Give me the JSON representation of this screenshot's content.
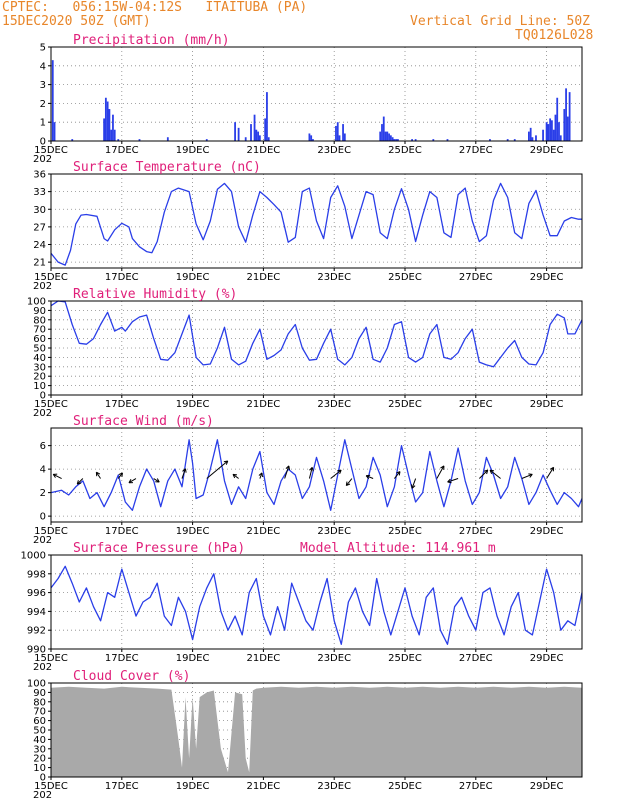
{
  "header": {
    "line1": "CPTEC:   056:15W-04:12S   ITAITUBA (PA)",
    "line2": "15DEC2020 50Z (GMT)",
    "right1": "Vertical Grid Line: 50Z",
    "right2": "TQ0126L028"
  },
  "colors": {
    "line": "#2a3ee8",
    "bar": "#2a3ee8",
    "cloud": "#a9a9a9",
    "title": "#e0207a",
    "header": "#e8862a",
    "wind_arrow": "#000000"
  },
  "x_axis": {
    "tick_labels": [
      "15DEC",
      "17DEC",
      "19DEC",
      "21DEC",
      "23DEC",
      "25DEC",
      "27DEC",
      "29DEC"
    ],
    "tick_days": [
      0,
      2,
      4,
      6,
      8,
      10,
      12,
      14
    ],
    "range_days": [
      0,
      15
    ],
    "year_fragment": "202"
  },
  "chart_data": [
    {
      "type": "bar",
      "title": "Precipitation (mm/h)",
      "ylim": [
        0,
        5
      ],
      "yticks": [
        0,
        1,
        2,
        3,
        4,
        5
      ],
      "x": [
        0.05,
        0.1,
        0.6,
        1.5,
        1.55,
        1.6,
        1.65,
        1.7,
        1.75,
        1.8,
        1.9,
        2.5,
        3.3,
        4.4,
        5.2,
        5.3,
        5.5,
        5.65,
        5.75,
        5.8,
        5.85,
        5.9,
        6.05,
        6.1,
        6.15,
        7.3,
        7.35,
        7.4,
        8.05,
        8.1,
        8.15,
        8.25,
        8.3,
        9.3,
        9.35,
        9.4,
        9.45,
        9.5,
        9.55,
        9.6,
        9.65,
        9.7,
        9.75,
        9.8,
        10.2,
        10.3,
        10.8,
        11.2,
        12.4,
        12.9,
        13.1,
        13.5,
        13.55,
        13.6,
        13.7,
        13.9,
        14.0,
        14.05,
        14.1,
        14.15,
        14.2,
        14.25,
        14.3,
        14.35,
        14.4,
        14.5,
        14.55,
        14.6,
        14.65
      ],
      "values": [
        4.3,
        1.0,
        0.1,
        1.2,
        2.3,
        2.1,
        1.7,
        0.6,
        1.4,
        0.6,
        0.1,
        0.1,
        0.2,
        0.1,
        1.0,
        0.7,
        0.2,
        0.9,
        1.4,
        0.6,
        0.5,
        0.3,
        1.2,
        2.6,
        0.2,
        0.4,
        0.3,
        0.1,
        0.8,
        1.0,
        0.3,
        0.9,
        0.4,
        0.5,
        0.9,
        1.3,
        0.5,
        0.5,
        0.4,
        0.3,
        0.2,
        0.1,
        0.1,
        0.1,
        0.1,
        0.1,
        0.1,
        0.1,
        0.1,
        0.1,
        0.1,
        0.5,
        0.7,
        0.2,
        0.3,
        0.6,
        1.0,
        0.9,
        1.2,
        1.1,
        0.6,
        1.4,
        2.3,
        1.0,
        0.3,
        1.7,
        2.8,
        1.3,
        2.6
      ]
    },
    {
      "type": "line",
      "title": "Surface Temperature (nC)",
      "ylim": [
        20,
        36
      ],
      "yticks": [
        21,
        24,
        27,
        30,
        33,
        36
      ],
      "x": [
        0,
        0.2,
        0.4,
        0.55,
        0.7,
        0.85,
        1.0,
        1.3,
        1.5,
        1.6,
        1.8,
        2.0,
        2.2,
        2.3,
        2.5,
        2.7,
        2.85,
        3.0,
        3.2,
        3.4,
        3.6,
        3.9,
        4.1,
        4.3,
        4.5,
        4.7,
        4.9,
        5.1,
        5.3,
        5.5,
        5.7,
        5.9,
        6.1,
        6.3,
        6.5,
        6.7,
        6.9,
        7.1,
        7.3,
        7.5,
        7.7,
        7.9,
        8.1,
        8.3,
        8.5,
        8.7,
        8.9,
        9.1,
        9.3,
        9.5,
        9.7,
        9.9,
        10.1,
        10.3,
        10.5,
        10.7,
        10.9,
        11.1,
        11.3,
        11.5,
        11.7,
        11.9,
        12.1,
        12.3,
        12.5,
        12.7,
        12.9,
        13.1,
        13.3,
        13.5,
        13.7,
        13.9,
        14.1,
        14.3,
        14.5,
        14.7,
        14.9,
        15.0
      ],
      "values": [
        22.5,
        21.0,
        20.5,
        23.0,
        27.5,
        29.0,
        29.1,
        28.8,
        25.0,
        24.6,
        26.5,
        27.6,
        27.0,
        25.0,
        23.6,
        22.8,
        22.6,
        24.5,
        29.5,
        33.0,
        33.6,
        33.0,
        27.5,
        24.8,
        28.0,
        33.4,
        34.4,
        33.0,
        27.0,
        24.4,
        29.0,
        33.0,
        32.0,
        30.8,
        29.5,
        24.4,
        25.2,
        33.0,
        33.6,
        28.0,
        25.0,
        32.0,
        34.0,
        30.5,
        25.0,
        29.0,
        33.0,
        32.5,
        26.0,
        25.0,
        30.0,
        33.5,
        30.0,
        24.5,
        29.0,
        33.0,
        32.0,
        26.0,
        25.2,
        32.5,
        33.6,
        28.0,
        24.5,
        25.5,
        31.5,
        34.4,
        32.0,
        26.0,
        25.0,
        31.0,
        33.2,
        29.0,
        25.5,
        25.5,
        28.0,
        28.6,
        28.3,
        28.3
      ]
    },
    {
      "type": "line",
      "title": "Relative Humidity (%)",
      "ylim": [
        0,
        100
      ],
      "yticks": [
        0,
        10,
        20,
        30,
        40,
        50,
        60,
        70,
        80,
        90,
        100
      ],
      "x": [
        0,
        0.2,
        0.4,
        0.6,
        0.8,
        1.0,
        1.2,
        1.4,
        1.6,
        1.8,
        2.0,
        2.1,
        2.3,
        2.5,
        2.7,
        2.9,
        3.1,
        3.3,
        3.5,
        3.7,
        3.9,
        4.1,
        4.3,
        4.5,
        4.7,
        4.9,
        5.1,
        5.3,
        5.5,
        5.7,
        5.9,
        6.1,
        6.3,
        6.5,
        6.7,
        6.9,
        7.1,
        7.3,
        7.5,
        7.7,
        7.9,
        8.1,
        8.3,
        8.5,
        8.7,
        8.9,
        9.1,
        9.3,
        9.5,
        9.7,
        9.9,
        10.1,
        10.3,
        10.5,
        10.7,
        10.9,
        11.1,
        11.3,
        11.5,
        11.7,
        11.9,
        12.1,
        12.3,
        12.5,
        12.7,
        12.9,
        13.1,
        13.3,
        13.5,
        13.7,
        13.9,
        14.1,
        14.3,
        14.5,
        14.6,
        14.8,
        15.0
      ],
      "values": [
        95,
        100,
        99,
        75,
        55,
        54,
        60,
        75,
        88,
        68,
        72,
        68,
        78,
        83,
        85,
        60,
        38,
        37,
        45,
        65,
        85,
        40,
        32,
        33,
        50,
        72,
        38,
        32,
        36,
        55,
        70,
        38,
        42,
        48,
        65,
        75,
        50,
        37,
        38,
        55,
        70,
        38,
        32,
        40,
        60,
        72,
        38,
        35,
        50,
        75,
        78,
        40,
        35,
        40,
        65,
        75,
        40,
        38,
        45,
        60,
        70,
        35,
        32,
        30,
        40,
        50,
        58,
        40,
        33,
        32,
        45,
        75,
        86,
        82,
        65,
        65,
        80
      ]
    },
    {
      "type": "line",
      "title": "Surface Wind (m/s)",
      "ylim": [
        -0.5,
        7.5
      ],
      "yticks": [
        0,
        2,
        4,
        6
      ],
      "x": [
        0,
        0.3,
        0.5,
        0.7,
        0.9,
        1.1,
        1.3,
        1.5,
        1.7,
        1.9,
        2.1,
        2.3,
        2.5,
        2.7,
        2.9,
        3.1,
        3.3,
        3.5,
        3.7,
        3.9,
        4.0,
        4.1,
        4.3,
        4.5,
        4.7,
        4.9,
        5.1,
        5.3,
        5.5,
        5.7,
        5.9,
        6.1,
        6.3,
        6.5,
        6.7,
        6.9,
        7.1,
        7.3,
        7.5,
        7.7,
        7.9,
        8.1,
        8.3,
        8.5,
        8.7,
        8.9,
        9.1,
        9.3,
        9.5,
        9.7,
        9.9,
        10.1,
        10.3,
        10.5,
        10.7,
        10.9,
        11.1,
        11.3,
        11.5,
        11.7,
        11.9,
        12.1,
        12.3,
        12.5,
        12.7,
        12.9,
        13.1,
        13.3,
        13.5,
        13.7,
        13.9,
        14.1,
        14.3,
        14.5,
        14.7,
        14.9,
        15.0
      ],
      "values": [
        2.0,
        2.2,
        1.8,
        2.5,
        3.0,
        1.5,
        2.0,
        0.8,
        2.0,
        3.5,
        1.2,
        0.5,
        2.5,
        4.0,
        3.0,
        0.8,
        3.0,
        4.0,
        2.5,
        6.5,
        4.5,
        1.5,
        1.8,
        4.0,
        6.5,
        3.0,
        1.0,
        2.5,
        1.5,
        4.0,
        5.5,
        2.0,
        1.0,
        3.0,
        4.0,
        3.5,
        1.5,
        2.5,
        5.0,
        3.0,
        0.5,
        3.5,
        6.5,
        4.0,
        1.5,
        2.5,
        5.0,
        3.5,
        0.8,
        2.5,
        6.0,
        3.5,
        1.2,
        2.0,
        5.5,
        3.0,
        0.8,
        3.0,
        5.8,
        3.0,
        1.0,
        2.0,
        5.0,
        3.5,
        1.5,
        2.5,
        5.0,
        3.2,
        1.0,
        2.0,
        3.5,
        2.2,
        1.0,
        2.0,
        1.5,
        0.8,
        1.5
      ]
    },
    {
      "type": "line",
      "title": "Surface Pressure (hPa)",
      "annotation": "Model Altitude: 114.961 m",
      "ylim": [
        990,
        1000
      ],
      "yticks": [
        990,
        992,
        994,
        996,
        998,
        1000
      ],
      "x": [
        0,
        0.2,
        0.4,
        0.6,
        0.8,
        1.0,
        1.2,
        1.4,
        1.6,
        1.8,
        2.0,
        2.2,
        2.4,
        2.6,
        2.8,
        3.0,
        3.2,
        3.4,
        3.6,
        3.8,
        4.0,
        4.2,
        4.4,
        4.6,
        4.8,
        5.0,
        5.2,
        5.4,
        5.6,
        5.8,
        6.0,
        6.2,
        6.4,
        6.6,
        6.8,
        7.0,
        7.2,
        7.4,
        7.6,
        7.8,
        8.0,
        8.2,
        8.4,
        8.6,
        8.8,
        9.0,
        9.2,
        9.4,
        9.6,
        9.8,
        10.0,
        10.2,
        10.4,
        10.6,
        10.8,
        11.0,
        11.2,
        11.4,
        11.6,
        11.8,
        12.0,
        12.2,
        12.4,
        12.6,
        12.8,
        13.0,
        13.2,
        13.4,
        13.6,
        13.8,
        14.0,
        14.2,
        14.4,
        14.6,
        14.8,
        15.0
      ],
      "values": [
        996.5,
        997.5,
        998.8,
        997.0,
        995.0,
        996.5,
        994.5,
        993.0,
        996.0,
        995.5,
        998.5,
        996.0,
        993.5,
        995.0,
        995.5,
        997.0,
        993.5,
        992.5,
        995.5,
        994.0,
        991.0,
        994.5,
        996.5,
        998.0,
        994.0,
        992.0,
        993.5,
        991.5,
        996.0,
        997.5,
        993.5,
        991.5,
        994.5,
        992.0,
        997.0,
        995.0,
        993.0,
        992.0,
        995.0,
        997.5,
        993.0,
        990.5,
        995.0,
        996.5,
        994.0,
        992.5,
        997.5,
        994.0,
        991.5,
        994.0,
        996.5,
        993.5,
        991.5,
        995.5,
        996.5,
        992.0,
        990.5,
        994.5,
        995.5,
        993.5,
        992.0,
        996.0,
        996.5,
        993.5,
        991.5,
        994.5,
        996.0,
        992.0,
        991.5,
        995.0,
        998.5,
        996.0,
        992.0,
        993.0,
        992.5,
        996.0
      ]
    },
    {
      "type": "area",
      "title": "Cloud Cover (%)",
      "ylim": [
        0,
        100
      ],
      "yticks": [
        0,
        10,
        20,
        30,
        40,
        50,
        60,
        70,
        80,
        90,
        100
      ],
      "x": [
        0,
        0.5,
        1.0,
        1.5,
        2.0,
        2.5,
        3.0,
        3.4,
        3.6,
        3.7,
        3.8,
        3.9,
        4.0,
        4.1,
        4.2,
        4.4,
        4.6,
        4.8,
        5.0,
        5.2,
        5.4,
        5.5,
        5.6,
        5.7,
        5.8,
        6.0,
        6.5,
        7.0,
        7.5,
        8.0,
        8.5,
        9.0,
        9.5,
        10.0,
        10.5,
        11.0,
        11.5,
        12.0,
        12.5,
        13.0,
        13.5,
        14.0,
        14.5,
        15.0
      ],
      "values": [
        95,
        96,
        95,
        94,
        96,
        95,
        94,
        93,
        40,
        10,
        85,
        20,
        85,
        30,
        85,
        90,
        92,
        30,
        5,
        90,
        88,
        20,
        5,
        92,
        94,
        95,
        96,
        95,
        96,
        95,
        96,
        95,
        96,
        95,
        96,
        95,
        96,
        95,
        96,
        95,
        96,
        95,
        96,
        95
      ]
    }
  ],
  "wind_arrows": {
    "x": [
      0.3,
      0.9,
      1.4,
      1.9,
      2.4,
      2.9,
      3.7,
      4.4,
      5.3,
      5.9,
      6.6,
      7.3,
      7.9,
      8.5,
      9.1,
      9.7,
      10.3,
      10.9,
      11.5,
      12.1,
      12.7,
      13.3,
      14.0
    ],
    "u": [
      -1.2,
      -0.8,
      -0.6,
      0.6,
      -1.0,
      0.8,
      0.5,
      3.0,
      -0.8,
      0.3,
      0.6,
      0.4,
      1.5,
      -0.8,
      -1.0,
      0.8,
      -0.5,
      1.0,
      -1.5,
      1.2,
      -1.5,
      1.5,
      1.0
    ],
    "v": [
      0.6,
      -0.8,
      0.9,
      0.8,
      -0.6,
      -0.5,
      1.4,
      2.5,
      0.6,
      0.8,
      1.8,
      1.6,
      1.2,
      -1.0,
      0.4,
      1.0,
      -1.4,
      1.8,
      -0.5,
      1.2,
      1.2,
      0.6,
      1.6
    ]
  }
}
